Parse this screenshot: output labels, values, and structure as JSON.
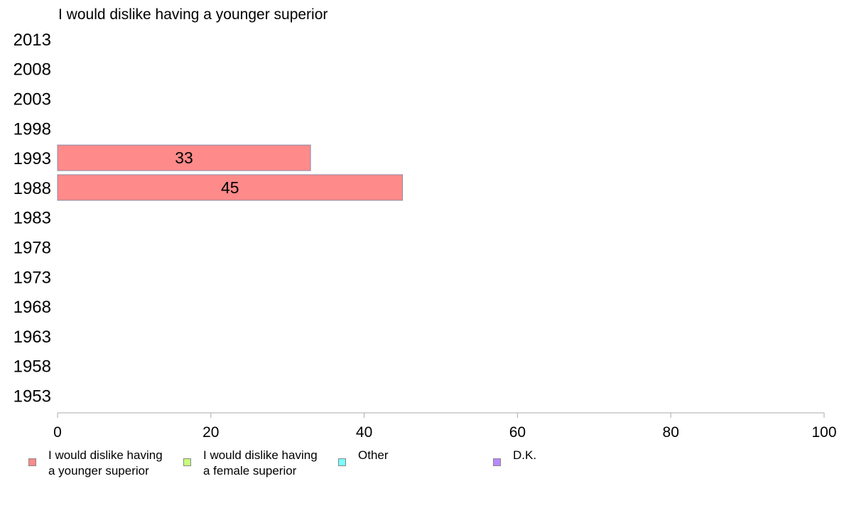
{
  "chart_data": {
    "type": "bar",
    "orientation": "horizontal",
    "title": "I would dislike having a younger superior",
    "categories": [
      "2013",
      "2008",
      "2003",
      "1998",
      "1993",
      "1988",
      "1983",
      "1978",
      "1973",
      "1968",
      "1963",
      "1958",
      "1953"
    ],
    "series": [
      {
        "name": "I would dislike having a younger superior",
        "color": "#ff8a8a",
        "values": [
          null,
          null,
          null,
          null,
          33,
          45,
          null,
          null,
          null,
          null,
          null,
          null,
          null
        ]
      }
    ],
    "xlim": [
      0,
      100
    ],
    "xticks": [
      0,
      20,
      40,
      60,
      80,
      100
    ],
    "grid": false,
    "legend_placement": "bottom"
  },
  "legend": [
    {
      "label": "I would dislike having\na younger superior",
      "color": "#ff8a8a"
    },
    {
      "label": "I would dislike having\na female superior",
      "color": "#c6ff7a"
    },
    {
      "label": "Other",
      "color": "#7affff"
    },
    {
      "label": "D.K.",
      "color": "#b88aff"
    }
  ]
}
